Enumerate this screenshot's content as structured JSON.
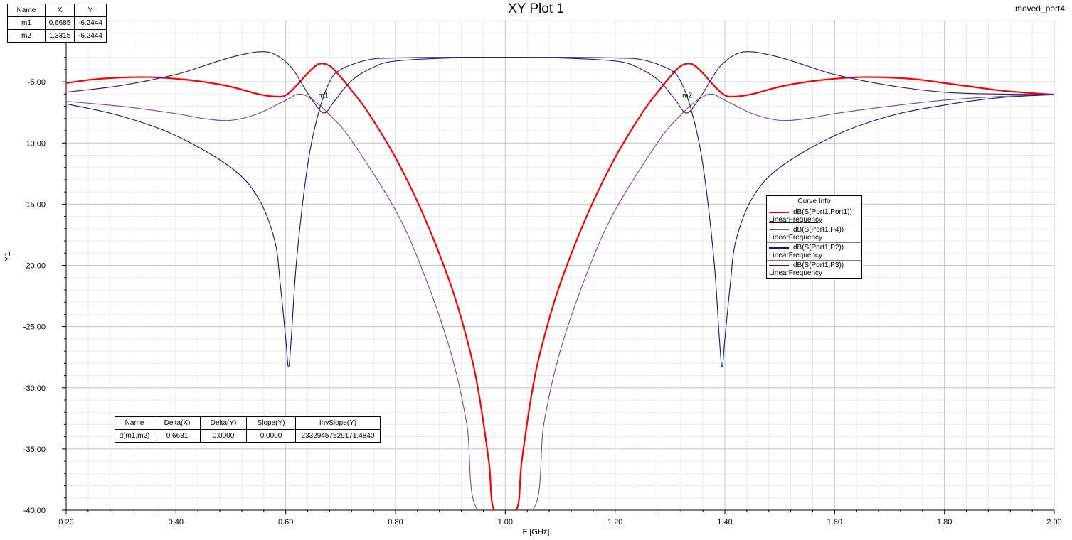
{
  "title": "XY Plot 1",
  "project_name": "moved_port4",
  "markers_table": {
    "headers": [
      "Name",
      "X",
      "Y"
    ],
    "rows": [
      [
        "m1",
        "0.6685",
        "-6.2444"
      ],
      [
        "m2",
        "1.3315",
        "-6.2444"
      ]
    ]
  },
  "delta_table": {
    "headers": [
      "Name",
      "Delta(X)",
      "Delta(Y)",
      "Slope(Y)",
      "InvSlope(Y)"
    ],
    "rows": [
      [
        "d(m1,m2)",
        "0.6631",
        "0.0000",
        "0.0000",
        "23329457529171.4840"
      ]
    ]
  },
  "legend": {
    "title": "Curve Info",
    "items": [
      {
        "name": "dB(S(Port1,Port1))",
        "sweep": "LinearFrequency",
        "color": "#ff0000",
        "underline": true
      },
      {
        "name": "dB(S(Port1,P4))",
        "sweep": "LinearFrequency",
        "color": "#7b4a8c",
        "underline": false
      },
      {
        "name": "dB(S(Port1,P2))",
        "sweep": "LinearFrequency",
        "color": "#1010a0",
        "underline": false
      },
      {
        "name": "dB(S(Port1,P3))",
        "sweep": "LinearFrequency",
        "color": "#3a1078",
        "underline": false
      }
    ]
  },
  "chart_data": {
    "type": "line",
    "xlabel": "F [GHz]",
    "ylabel": "Y1",
    "xlim": [
      0.2,
      2.0
    ],
    "ylim": [
      -40,
      0
    ],
    "x_ticks": [
      "0.20",
      "0.40",
      "0.60",
      "0.80",
      "1.00",
      "1.20",
      "1.40",
      "1.60",
      "1.80",
      "2.00"
    ],
    "y_ticks": [
      "-5.00",
      "-10.00",
      "-15.00",
      "-20.00",
      "-25.00",
      "-30.00",
      "-35.00",
      "-40.00"
    ],
    "grid": true,
    "series": [
      {
        "name": "dB(S(Port1,Port1))",
        "color": "#ff0000",
        "x": [
          0.2,
          0.25,
          0.3,
          0.35,
          0.4,
          0.45,
          0.5,
          0.55,
          0.58,
          0.6,
          0.62,
          0.64,
          0.66,
          0.68,
          0.7,
          0.72,
          0.75,
          0.8,
          0.85,
          0.9,
          0.93,
          0.95,
          0.97,
          0.98,
          1.02,
          1.03,
          1.05,
          1.07,
          1.1,
          1.15,
          1.2,
          1.25,
          1.28,
          1.3,
          1.32,
          1.34,
          1.36,
          1.38,
          1.4,
          1.42,
          1.45,
          1.5,
          1.55,
          1.6,
          1.65,
          1.7,
          1.75,
          1.8,
          1.85,
          1.9,
          1.95,
          2.0
        ],
        "y": [
          -5.1,
          -4.8,
          -4.65,
          -4.62,
          -4.75,
          -5.0,
          -5.4,
          -6.0,
          -6.2,
          -6.1,
          -5.3,
          -4.3,
          -3.55,
          -3.7,
          -4.6,
          -5.7,
          -7.5,
          -11.2,
          -15.8,
          -21.5,
          -26.0,
          -30.0,
          -36.0,
          -40.0,
          -40.0,
          -36.0,
          -30.0,
          -26.0,
          -21.5,
          -15.8,
          -11.2,
          -7.5,
          -5.7,
          -4.6,
          -3.7,
          -3.55,
          -4.3,
          -5.3,
          -6.1,
          -6.2,
          -6.0,
          -5.4,
          -5.0,
          -4.75,
          -4.62,
          -4.65,
          -4.8,
          -5.1,
          -5.4,
          -5.7,
          -5.9,
          -6.05
        ]
      },
      {
        "name": "dB(S(Port1,P4))",
        "color": "#7b4a8c",
        "x": [
          0.2,
          0.3,
          0.4,
          0.45,
          0.5,
          0.55,
          0.6,
          0.625,
          0.65,
          0.68,
          0.72,
          0.8,
          0.85,
          0.9,
          0.93,
          0.95,
          1.05,
          1.07,
          1.1,
          1.15,
          1.2,
          1.28,
          1.32,
          1.35,
          1.375,
          1.4,
          1.45,
          1.5,
          1.55,
          1.6,
          1.7,
          1.8,
          1.9,
          2.0
        ],
        "y": [
          -6.6,
          -7.0,
          -7.6,
          -8.0,
          -8.15,
          -7.6,
          -6.5,
          -6.0,
          -6.5,
          -7.7,
          -9.8,
          -15.5,
          -20.5,
          -27.0,
          -33.0,
          -40.0,
          -40.0,
          -33.0,
          -27.0,
          -20.5,
          -15.5,
          -9.8,
          -7.7,
          -6.5,
          -6.0,
          -6.5,
          -7.6,
          -8.15,
          -8.0,
          -7.6,
          -7.0,
          -6.5,
          -6.2,
          -6.05
        ]
      },
      {
        "name": "dB(S(Port1,P2))",
        "color": "#1010a0",
        "x": [
          0.2,
          0.3,
          0.4,
          0.5,
          0.55,
          0.58,
          0.59,
          0.6,
          0.605,
          0.61,
          0.62,
          0.64,
          0.66,
          0.68,
          0.7,
          0.75,
          0.8,
          0.9,
          1.0,
          1.1,
          1.2,
          1.25,
          1.3,
          1.32,
          1.34,
          1.36,
          1.38,
          1.39,
          1.395,
          1.4,
          1.41,
          1.42,
          1.45,
          1.5,
          1.6,
          1.7,
          1.8,
          1.9,
          2.0
        ],
        "y": [
          -6.8,
          -7.8,
          -9.4,
          -12.0,
          -14.5,
          -18.0,
          -21.5,
          -26.0,
          -28.3,
          -26.0,
          -19.5,
          -11.8,
          -7.5,
          -5.0,
          -4.0,
          -3.2,
          -3.05,
          -3.0,
          -3.0,
          -3.0,
          -3.05,
          -3.2,
          -4.0,
          -5.0,
          -7.5,
          -11.8,
          -19.5,
          -26.0,
          -28.3,
          -26.0,
          -21.5,
          -18.0,
          -14.5,
          -12.0,
          -9.4,
          -7.8,
          -6.9,
          -6.3,
          -6.05
        ]
      },
      {
        "name": "dB(S(Port1,P3))",
        "color": "#3a1078",
        "x": [
          0.2,
          0.3,
          0.4,
          0.45,
          0.5,
          0.55,
          0.58,
          0.61,
          0.63,
          0.65,
          0.67,
          0.69,
          0.72,
          0.76,
          0.8,
          0.9,
          1.0,
          1.1,
          1.2,
          1.24,
          1.28,
          1.31,
          1.33,
          1.35,
          1.37,
          1.39,
          1.42,
          1.45,
          1.5,
          1.55,
          1.6,
          1.7,
          1.8,
          1.9,
          2.0
        ],
        "y": [
          -5.85,
          -5.3,
          -4.4,
          -3.7,
          -3.0,
          -2.55,
          -2.75,
          -3.8,
          -5.2,
          -6.6,
          -7.55,
          -6.5,
          -4.9,
          -3.8,
          -3.3,
          -3.05,
          -3.0,
          -3.05,
          -3.3,
          -3.8,
          -4.9,
          -6.5,
          -7.55,
          -6.6,
          -5.2,
          -3.8,
          -2.75,
          -2.55,
          -3.0,
          -3.7,
          -4.4,
          -5.3,
          -5.85,
          -6.0,
          -6.05
        ]
      }
    ],
    "markers": [
      {
        "label": "m1",
        "x": 0.6685,
        "y": -6.2444
      },
      {
        "label": "m2",
        "x": 1.3315,
        "y": -6.2444
      }
    ]
  }
}
